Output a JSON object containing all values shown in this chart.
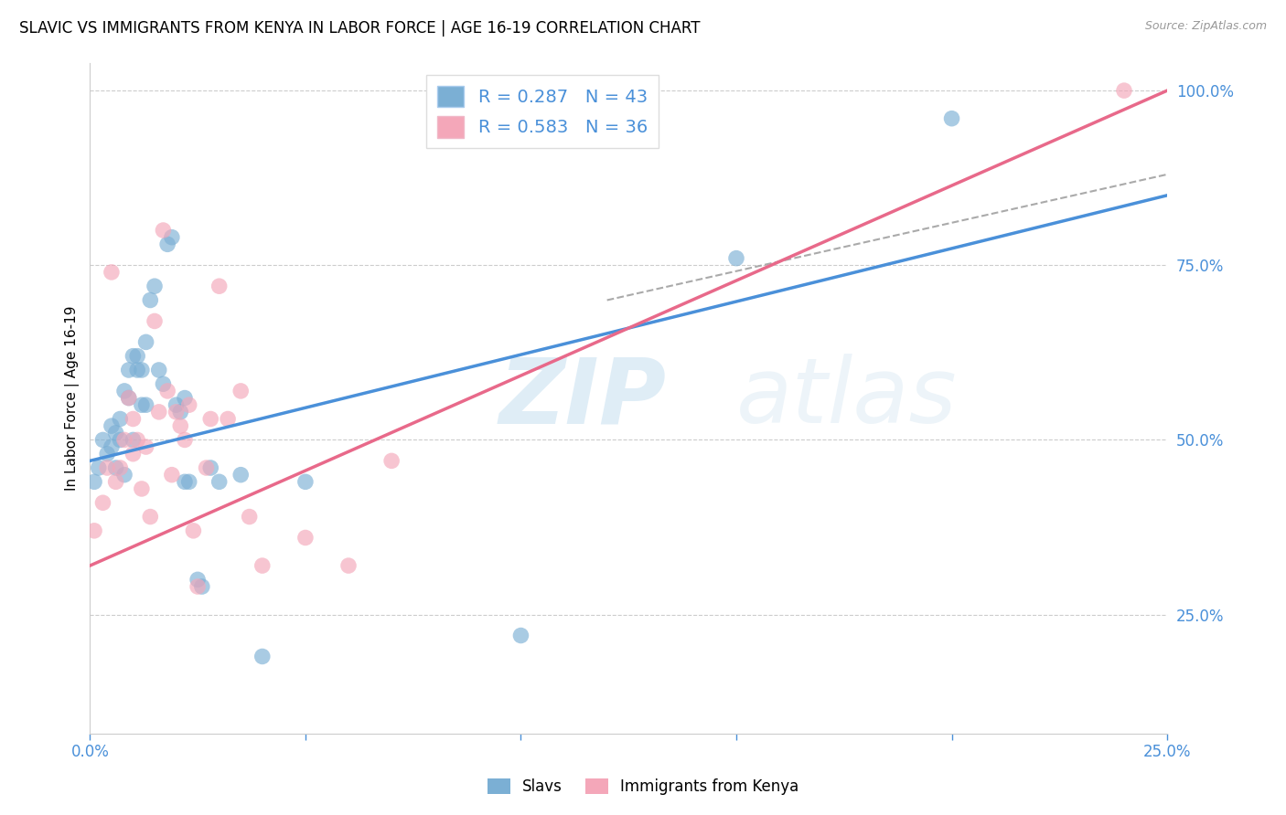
{
  "title": "SLAVIC VS IMMIGRANTS FROM KENYA IN LABOR FORCE | AGE 16-19 CORRELATION CHART",
  "source": "Source: ZipAtlas.com",
  "ylabel": "In Labor Force | Age 16-19",
  "xmin": 0.0,
  "xmax": 0.25,
  "ymin": 0.08,
  "ymax": 1.04,
  "x_tick_positions": [
    0.0,
    0.05,
    0.1,
    0.15,
    0.2,
    0.25
  ],
  "x_tick_labels": [
    "0.0%",
    "",
    "",
    "",
    "",
    "25.0%"
  ],
  "y_tick_labels_right": [
    "100.0%",
    "75.0%",
    "50.0%",
    "25.0%"
  ],
  "y_ticks_right": [
    1.0,
    0.75,
    0.5,
    0.25
  ],
  "slavs_R": 0.287,
  "slavs_N": 43,
  "kenya_R": 0.583,
  "kenya_N": 36,
  "slavs_color": "#7bafd4",
  "kenya_color": "#f4a7b9",
  "slavs_line_color": "#4a90d9",
  "kenya_line_color": "#e8698a",
  "slavs_line": [
    0.0,
    0.47,
    0.25,
    0.85
  ],
  "kenya_line": [
    0.0,
    0.32,
    0.25,
    1.0
  ],
  "dashed_line": [
    0.12,
    0.7,
    0.25,
    0.88
  ],
  "watermark_zip": "ZIP",
  "watermark_atlas": "atlas",
  "slavs_x": [
    0.001,
    0.002,
    0.003,
    0.004,
    0.005,
    0.005,
    0.006,
    0.006,
    0.007,
    0.007,
    0.008,
    0.008,
    0.009,
    0.009,
    0.01,
    0.01,
    0.011,
    0.011,
    0.012,
    0.012,
    0.013,
    0.013,
    0.014,
    0.015,
    0.016,
    0.017,
    0.018,
    0.019,
    0.02,
    0.021,
    0.022,
    0.022,
    0.023,
    0.025,
    0.026,
    0.028,
    0.03,
    0.035,
    0.04,
    0.05,
    0.1,
    0.15,
    0.2
  ],
  "slavs_y": [
    0.44,
    0.46,
    0.5,
    0.48,
    0.52,
    0.49,
    0.51,
    0.46,
    0.53,
    0.5,
    0.45,
    0.57,
    0.56,
    0.6,
    0.5,
    0.62,
    0.6,
    0.62,
    0.55,
    0.6,
    0.64,
    0.55,
    0.7,
    0.72,
    0.6,
    0.58,
    0.78,
    0.79,
    0.55,
    0.54,
    0.56,
    0.44,
    0.44,
    0.3,
    0.29,
    0.46,
    0.44,
    0.45,
    0.19,
    0.44,
    0.22,
    0.76,
    0.96
  ],
  "kenya_x": [
    0.001,
    0.003,
    0.004,
    0.005,
    0.006,
    0.007,
    0.008,
    0.009,
    0.01,
    0.01,
    0.011,
    0.012,
    0.013,
    0.014,
    0.015,
    0.016,
    0.017,
    0.018,
    0.019,
    0.02,
    0.021,
    0.022,
    0.023,
    0.024,
    0.025,
    0.027,
    0.028,
    0.03,
    0.032,
    0.035,
    0.037,
    0.04,
    0.05,
    0.06,
    0.07,
    0.24
  ],
  "kenya_y": [
    0.37,
    0.41,
    0.46,
    0.74,
    0.44,
    0.46,
    0.5,
    0.56,
    0.53,
    0.48,
    0.5,
    0.43,
    0.49,
    0.39,
    0.67,
    0.54,
    0.8,
    0.57,
    0.45,
    0.54,
    0.52,
    0.5,
    0.55,
    0.37,
    0.29,
    0.46,
    0.53,
    0.72,
    0.53,
    0.57,
    0.39,
    0.32,
    0.36,
    0.32,
    0.47,
    1.0
  ]
}
